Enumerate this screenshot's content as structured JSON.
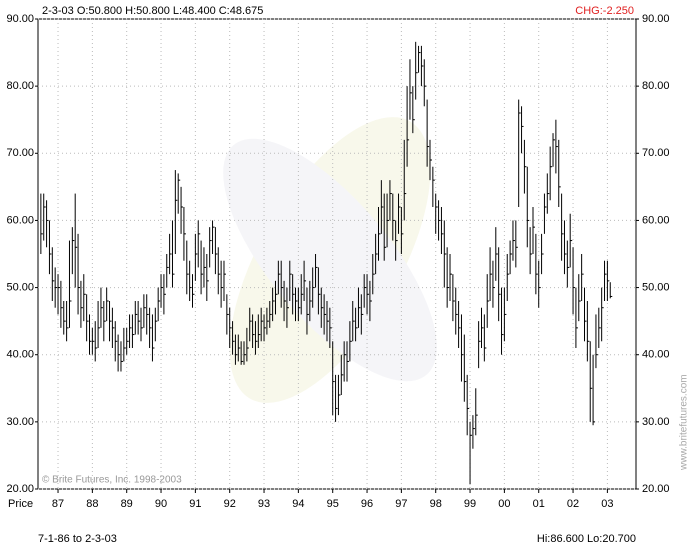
{
  "chart_data": {
    "type": "ohlc",
    "title": "2-3-03 O:50.800 H:50.800 L:48.400 C:48.675",
    "change_label": "CHG:-2.250",
    "x_label": "Price",
    "range_label": "7-1-86 to 2-3-03",
    "hilo_label": "Hi:86.600 Lo:20.700",
    "copyright": "© Brite Futures, Inc. 1998-2003",
    "watermark_url": "www.britefutures.com",
    "color": "#000000",
    "change_color": "#e02020",
    "grid": true,
    "ylim": [
      20,
      90
    ],
    "yticks": [
      {
        "value": 20,
        "label": "20.00"
      },
      {
        "value": 30,
        "label": "30.00"
      },
      {
        "value": 40,
        "label": "40.00"
      },
      {
        "value": 50,
        "label": "50.00"
      },
      {
        "value": 60,
        "label": "60.00"
      },
      {
        "value": 70,
        "label": "70.00"
      },
      {
        "value": 80,
        "label": "80.00"
      },
      {
        "value": 90,
        "label": "90.00"
      }
    ],
    "categories": [
      null,
      null,
      null,
      null,
      null,
      null,
      "87",
      null,
      null,
      null,
      null,
      null,
      null,
      null,
      null,
      null,
      null,
      null,
      "88",
      null,
      null,
      null,
      null,
      null,
      null,
      null,
      null,
      null,
      null,
      null,
      "89",
      null,
      null,
      null,
      null,
      null,
      null,
      null,
      null,
      null,
      null,
      null,
      "90",
      null,
      null,
      null,
      null,
      null,
      null,
      null,
      null,
      null,
      null,
      null,
      "91",
      null,
      null,
      null,
      null,
      null,
      null,
      null,
      null,
      null,
      null,
      null,
      "92",
      null,
      null,
      null,
      null,
      null,
      null,
      null,
      null,
      null,
      null,
      null,
      "93",
      null,
      null,
      null,
      null,
      null,
      null,
      null,
      null,
      null,
      null,
      null,
      "94",
      null,
      null,
      null,
      null,
      null,
      null,
      null,
      null,
      null,
      null,
      null,
      "95",
      null,
      null,
      null,
      null,
      null,
      null,
      null,
      null,
      null,
      null,
      null,
      "96",
      null,
      null,
      null,
      null,
      null,
      null,
      null,
      null,
      null,
      null,
      null,
      "97",
      null,
      null,
      null,
      null,
      null,
      null,
      null,
      null,
      null,
      null,
      null,
      "98",
      null,
      null,
      null,
      null,
      null,
      null,
      null,
      null,
      null,
      null,
      null,
      "99",
      null,
      null,
      null,
      null,
      null,
      null,
      null,
      null,
      null,
      null,
      null,
      "00",
      null,
      null,
      null,
      null,
      null,
      null,
      null,
      null,
      null,
      null,
      null,
      "01",
      null,
      null,
      null,
      null,
      null,
      null,
      null,
      null,
      null,
      null,
      null,
      "02",
      null,
      null,
      null,
      null,
      null,
      null,
      null,
      null,
      null,
      null,
      null,
      "03",
      null
    ],
    "high": [
      64,
      64,
      63,
      60,
      56,
      53,
      52,
      51,
      48,
      48,
      57,
      59,
      64,
      58,
      51,
      52,
      49,
      46,
      44,
      45,
      48,
      50,
      48,
      50,
      48,
      47,
      45,
      43,
      42,
      44,
      44,
      46,
      46,
      48,
      48,
      47,
      49,
      49,
      47,
      46,
      47,
      50,
      52,
      52,
      55,
      58,
      60,
      67.5,
      67,
      65,
      62,
      57,
      54,
      52,
      58,
      60,
      57,
      56,
      55,
      59,
      60,
      59,
      56,
      54,
      54,
      49,
      47,
      45,
      43,
      43,
      42,
      42,
      44,
      47,
      46,
      45,
      46,
      47,
      46,
      47,
      48,
      50,
      51,
      54,
      54,
      51,
      50,
      54,
      52,
      50,
      50,
      52,
      54,
      50,
      51,
      53,
      55,
      53,
      50,
      49,
      48,
      47,
      42,
      37,
      37,
      40,
      42,
      42,
      45,
      48,
      47,
      50,
      49,
      52,
      52,
      51,
      55,
      58,
      62,
      66,
      64,
      64,
      66,
      64,
      60,
      64,
      62,
      72,
      80,
      84,
      80,
      86.6,
      86,
      86,
      84,
      78,
      72,
      68,
      64,
      63,
      62,
      60,
      56,
      55,
      52,
      50,
      48,
      46,
      43,
      37,
      30,
      31,
      35,
      45,
      47,
      46,
      52,
      56,
      54,
      59,
      56,
      50,
      50,
      55,
      57,
      60,
      60,
      78,
      77,
      72,
      68,
      59,
      62,
      58,
      54,
      58,
      64,
      67,
      71,
      73,
      75,
      72,
      64,
      60,
      57,
      61,
      56,
      50,
      52,
      55,
      50,
      48,
      42,
      40,
      46,
      47,
      50,
      54,
      54,
      50.8
    ],
    "low": [
      55,
      57,
      56,
      52,
      48,
      47,
      46,
      44,
      43,
      42,
      44,
      52,
      50,
      46,
      44,
      45,
      42,
      40,
      40,
      39,
      41,
      44,
      42,
      45,
      42,
      41,
      39,
      37.5,
      37.5,
      39,
      40,
      41,
      41,
      43,
      43,
      42,
      44,
      43,
      41,
      39,
      42,
      45,
      47,
      46,
      50,
      52,
      50,
      55,
      61,
      58,
      54,
      49,
      48,
      47,
      51,
      53,
      49,
      50,
      48,
      53,
      55,
      52,
      49,
      47,
      48,
      43,
      41,
      40,
      38.5,
      39,
      38.5,
      38.5,
      39,
      42,
      41,
      40,
      41,
      42,
      42,
      43,
      44,
      45,
      46,
      49,
      47,
      45,
      44,
      48,
      46,
      45,
      45,
      46,
      48,
      43,
      45,
      47,
      50,
      46,
      44,
      43,
      42,
      41,
      31,
      30,
      31,
      34,
      36,
      36,
      39,
      42,
      42,
      44,
      43,
      47,
      46,
      45,
      49,
      52,
      54,
      58,
      54,
      56,
      60,
      57,
      54,
      58,
      55,
      60,
      68,
      75,
      73,
      78,
      82,
      80,
      77,
      68,
      66,
      62,
      58,
      57,
      55,
      50,
      47,
      48,
      45,
      43,
      41,
      36,
      33,
      28,
      20.7,
      26,
      28,
      38,
      41,
      39,
      44,
      48,
      47,
      51,
      45,
      40,
      42,
      48,
      52,
      54,
      53,
      62,
      70,
      64,
      56,
      52,
      55,
      49,
      47,
      52,
      58,
      61,
      63,
      68,
      67,
      62,
      54,
      52,
      50,
      53,
      46,
      41,
      45,
      48,
      42,
      39,
      30,
      29.5,
      38,
      41,
      42,
      48,
      48,
      48.4
    ],
    "close": [
      58,
      62,
      60,
      55,
      51,
      50,
      50,
      47,
      45,
      44,
      48,
      57,
      56,
      50,
      47,
      49,
      45,
      42,
      42,
      41,
      44,
      47,
      45,
      48,
      45,
      44,
      42,
      40,
      39,
      41,
      42,
      44,
      43,
      46,
      45,
      44,
      47,
      46,
      44,
      41,
      45,
      48,
      50,
      49,
      53,
      55,
      52,
      63,
      66,
      62,
      58,
      52,
      50,
      49,
      55,
      58,
      52,
      53,
      51,
      57,
      59,
      55,
      52,
      50,
      52,
      46,
      44,
      42,
      40,
      41,
      39,
      40,
      41,
      45,
      43,
      42,
      43,
      45,
      44,
      45,
      46,
      48,
      49,
      52,
      50,
      48,
      47,
      52,
      49,
      48,
      47,
      49,
      51,
      46,
      48,
      50,
      53,
      49,
      47,
      46,
      45,
      44,
      36,
      32,
      34,
      37,
      40,
      39,
      42,
      45,
      44,
      47,
      46,
      50,
      49,
      48,
      52,
      55,
      58,
      62,
      56,
      60,
      64,
      60,
      57,
      62,
      58,
      64,
      72,
      79,
      75,
      82,
      85,
      83,
      80,
      71,
      69,
      66,
      62,
      60,
      58,
      55,
      50,
      52,
      48,
      46,
      44,
      40,
      36,
      32,
      28,
      29,
      31,
      42,
      44,
      41,
      48,
      52,
      50,
      55,
      49,
      43,
      46,
      52,
      55,
      57,
      56,
      76,
      74,
      68,
      60,
      55,
      59,
      52,
      50,
      55,
      62,
      64,
      68,
      72,
      71,
      65,
      58,
      55,
      53,
      57,
      50,
      44,
      48,
      52,
      45,
      42,
      35,
      30,
      40,
      44,
      47,
      52,
      51,
      48.675
    ]
  }
}
